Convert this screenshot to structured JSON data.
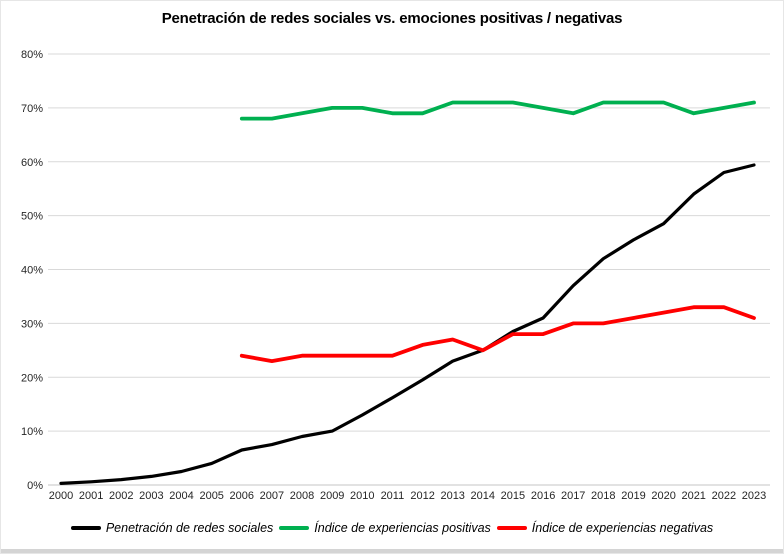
{
  "window": {
    "bottom_bar_color": "#d4d4d4",
    "frame_border_color": "#e6e6e6"
  },
  "chart_data": {
    "type": "line",
    "title": "Penetración de redes sociales vs. emociones positivas / negativas",
    "xlabel": "",
    "ylabel": "",
    "x": [
      2000,
      2001,
      2002,
      2003,
      2004,
      2005,
      2006,
      2007,
      2008,
      2009,
      2010,
      2011,
      2012,
      2013,
      2014,
      2015,
      2016,
      2017,
      2018,
      2019,
      2020,
      2021,
      2022,
      2023
    ],
    "ylim": [
      0,
      80
    ],
    "y_tick_step": 10,
    "y_tick_suffix": "%",
    "grid": true,
    "gridline_color": "#d9d9d9",
    "axis_line_color": "#c6c6c6",
    "tick_label_color": "#262626",
    "legend_position": "bottom",
    "series": [
      {
        "name": "Penetración de redes sociales",
        "color": "#000000",
        "line_width": 3.2,
        "values": [
          0.3,
          0.6,
          1,
          1.6,
          2.5,
          4,
          6.5,
          7.5,
          9,
          10,
          13,
          16.2,
          19.5,
          23,
          25,
          28.5,
          31,
          37,
          42,
          45.5,
          48.5,
          54,
          58,
          59.4
        ]
      },
      {
        "name": "Índice de experiencias positivas",
        "color": "#00B050",
        "line_width": 3.8,
        "values": [
          null,
          null,
          null,
          null,
          null,
          null,
          68,
          68,
          69,
          70,
          70,
          69,
          69,
          71,
          71,
          71,
          70,
          69,
          71,
          71,
          71,
          69,
          70,
          71
        ]
      },
      {
        "name": "Índice de experiencias negativas",
        "color": "#FF0000",
        "line_width": 3.8,
        "values": [
          null,
          null,
          null,
          null,
          null,
          null,
          24,
          23,
          24,
          24,
          24,
          24,
          26,
          27,
          25,
          28,
          28,
          30,
          30,
          31,
          32,
          33,
          33,
          31
        ]
      }
    ]
  }
}
